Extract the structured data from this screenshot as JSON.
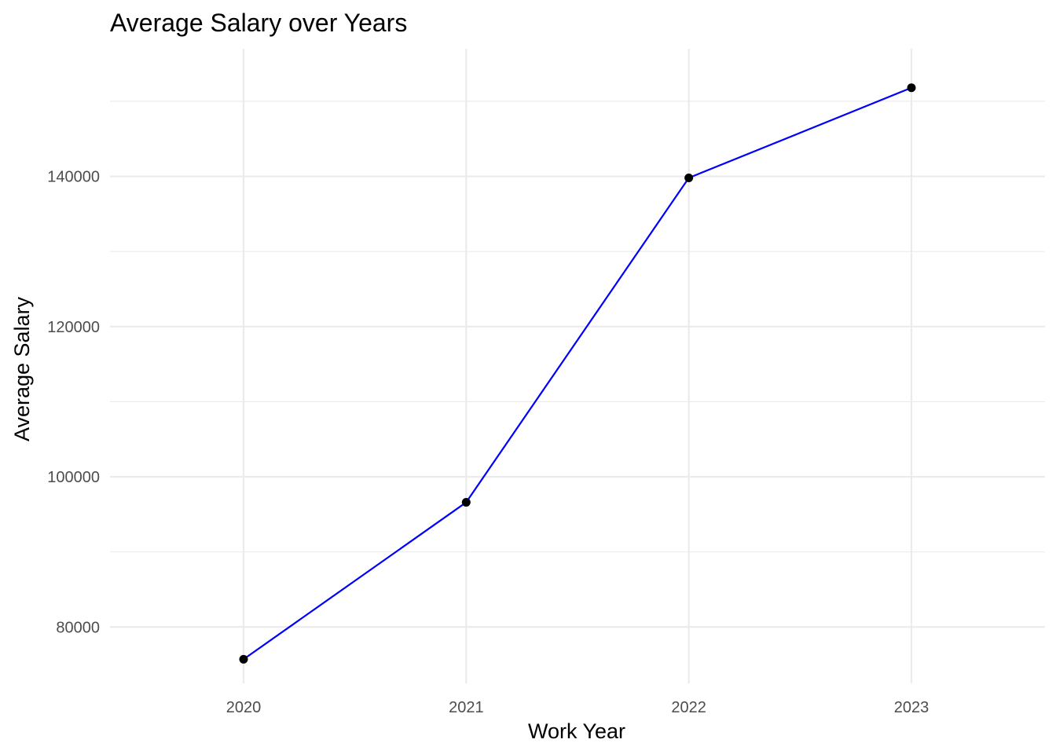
{
  "chart_data": {
    "type": "line",
    "title": "Average Salary over Years",
    "xlabel": "Work Year",
    "ylabel": "Average Salary",
    "x": [
      2020,
      2021,
      2022,
      2023
    ],
    "x_tick_labels": [
      "2020",
      "2021",
      "2022",
      "2023"
    ],
    "xlim": [
      2019.4,
      2023.6
    ],
    "y_ticks": [
      80000,
      100000,
      120000,
      140000
    ],
    "y_tick_labels": [
      "80000",
      "100000",
      "120000",
      "140000"
    ],
    "ylim": [
      72500,
      157000
    ],
    "y_minor_ticks": [
      90000,
      110000,
      130000,
      150000
    ],
    "grid": true,
    "legend": "none",
    "series": [
      {
        "values": [
          75700,
          96600,
          139800,
          151800
        ],
        "line_color": "#0000ff",
        "point_color": "#000000"
      }
    ]
  }
}
